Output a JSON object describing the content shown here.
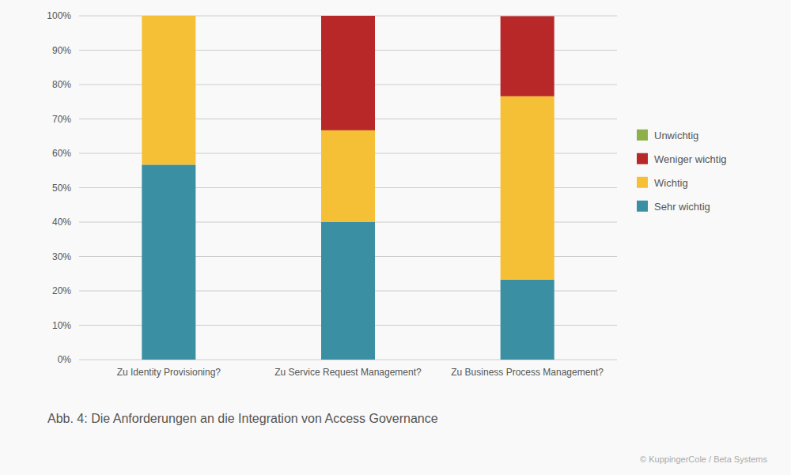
{
  "chart_data": {
    "type": "bar",
    "title": "Abb. 4: Die Anforderungen an die Integration von Access Governance",
    "annotations": [
      "© KuppingerCole / Beta Systems"
    ],
    "categories": [
      "Zu Identity Provisioning?",
      "Zu Service Request Management?",
      "Zu Business Process Management?"
    ],
    "series": [
      {
        "name": "Sehr wichtig",
        "color": "#3a8fa3",
        "values": [
          56.7,
          40.0,
          23.3
        ]
      },
      {
        "name": "Wichtig",
        "color": "#f5c035",
        "values": [
          43.3,
          26.7,
          53.3
        ]
      },
      {
        "name": "Weniger wichtig",
        "color": "#b92828",
        "values": [
          0.0,
          33.3,
          23.3
        ]
      },
      {
        "name": "Unwichtig",
        "color": "#8db04b",
        "values": [
          0.0,
          0.0,
          0.0
        ]
      }
    ],
    "stacked": true,
    "ylim": [
      0,
      100
    ],
    "yticks": [
      {
        "value": 0,
        "label": "0%"
      },
      {
        "value": 10,
        "label": "10%"
      },
      {
        "value": 20,
        "label": "20%"
      },
      {
        "value": 30,
        "label": "30%"
      },
      {
        "value": 40,
        "label": "40%"
      },
      {
        "value": 50,
        "label": "50%"
      },
      {
        "value": 60,
        "label": "60%"
      },
      {
        "value": 70,
        "label": "70%"
      },
      {
        "value": 80,
        "label": "80%"
      },
      {
        "value": 90,
        "label": "90%"
      },
      {
        "value": 100,
        "label": "100%"
      }
    ],
    "grid": true,
    "legend": "right"
  }
}
